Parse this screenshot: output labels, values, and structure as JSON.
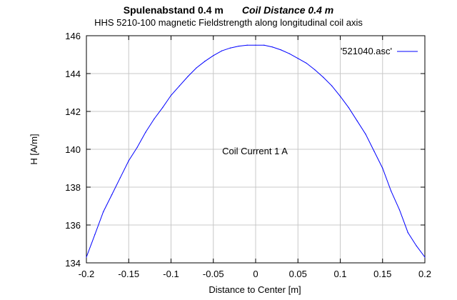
{
  "chart_data": {
    "type": "line",
    "title": "Spulenabstand 0.4 m",
    "title_en": "Coil Distance 0.4 m",
    "subtitle": "HHS 5210-100 magnetic Fieldstrength along longitudinal coil axis",
    "xlabel": "Distance to Center [m]",
    "ylabel": "H [A/m]",
    "xlim": [
      -0.2,
      0.2
    ],
    "ylim": [
      134,
      146
    ],
    "xticks": [
      -0.2,
      -0.15,
      -0.1,
      -0.05,
      0,
      0.05,
      0.1,
      0.15,
      0.2
    ],
    "xtick_labels": [
      "-0.2",
      "-0.15",
      "-0.1",
      "-0.05",
      "0",
      "0.05",
      "0.1",
      "0.15",
      "0.2"
    ],
    "yticks": [
      134,
      136,
      138,
      140,
      142,
      144,
      146
    ],
    "ytick_labels": [
      "134",
      "136",
      "138",
      "140",
      "142",
      "144",
      "146"
    ],
    "grid": true,
    "legend_position": "top-right",
    "annotation": "Coil Current 1 A",
    "series": [
      {
        "name": "'521040.asc'",
        "color": "#0000ff",
        "x": [
          -0.2,
          -0.19,
          -0.18,
          -0.17,
          -0.16,
          -0.15,
          -0.14,
          -0.13,
          -0.12,
          -0.11,
          -0.1,
          -0.09,
          -0.08,
          -0.07,
          -0.06,
          -0.05,
          -0.04,
          -0.03,
          -0.02,
          -0.01,
          0,
          0.01,
          0.02,
          0.03,
          0.04,
          0.05,
          0.06,
          0.07,
          0.08,
          0.09,
          0.1,
          0.11,
          0.12,
          0.13,
          0.14,
          0.15,
          0.16,
          0.17,
          0.18,
          0.19,
          0.2
        ],
        "values": [
          134.3,
          135.5,
          136.7,
          137.6,
          138.5,
          139.4,
          140.1,
          140.9,
          141.6,
          142.2,
          142.85,
          143.35,
          143.85,
          144.3,
          144.65,
          144.95,
          145.2,
          145.35,
          145.45,
          145.5,
          145.5,
          145.5,
          145.4,
          145.25,
          145.05,
          144.8,
          144.55,
          144.2,
          143.8,
          143.35,
          142.8,
          142.2,
          141.5,
          140.8,
          139.9,
          139.0,
          137.8,
          136.8,
          135.6,
          134.9,
          134.3
        ]
      }
    ]
  }
}
